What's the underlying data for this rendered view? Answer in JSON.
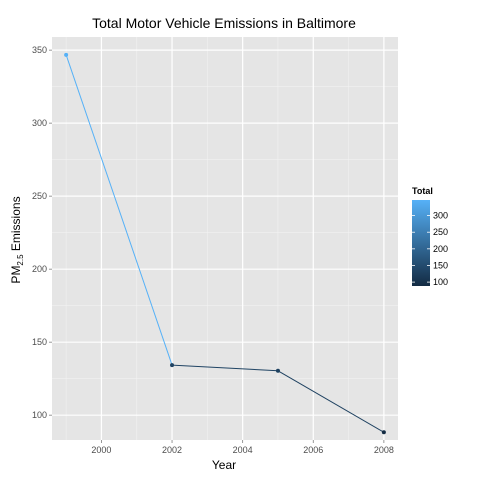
{
  "chart_data": {
    "type": "line",
    "title": "Total Motor Vehicle Emissions in Baltimore",
    "xlabel": "Year",
    "ylabel": {
      "main": "PM",
      "sub": "2.5",
      "suffix": " Emissions"
    },
    "x": [
      1999,
      2002,
      2005,
      2008
    ],
    "values": [
      346.8,
      134.3,
      130.4,
      88.3
    ],
    "xlim": [
      1998.6,
      2008.4
    ],
    "ylim": [
      83,
      359
    ],
    "xticks": [
      2000,
      2002,
      2004,
      2006,
      2008
    ],
    "yticks": [
      100,
      150,
      200,
      250,
      300,
      350
    ],
    "grid": true,
    "color_scale": {
      "title": "Total",
      "low_color": "#132b43",
      "high_color": "#56b1f7",
      "ticks": [
        100,
        150,
        200,
        250,
        300
      ],
      "range": [
        88.3,
        346.8
      ]
    },
    "legend_position": "right"
  }
}
